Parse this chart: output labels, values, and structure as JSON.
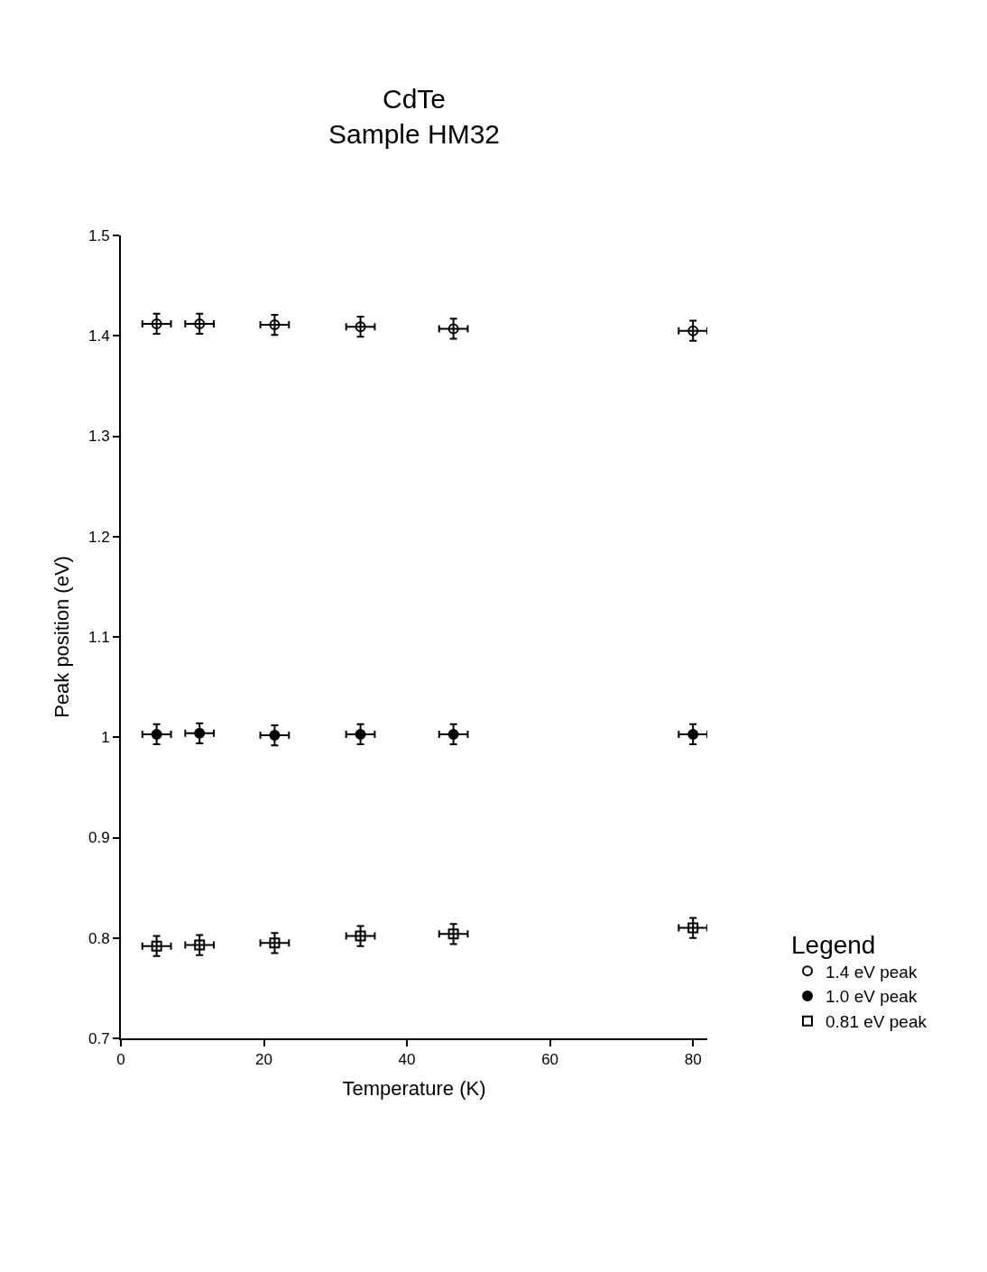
{
  "chart_data": {
    "type": "scatter",
    "title": "CdTe\nSample HM32",
    "xlabel": "Temperature (K)",
    "ylabel": "Peak position (eV)",
    "legend_title": "Legend",
    "xlim": [
      0,
      82
    ],
    "xticks": [
      0,
      20,
      40,
      60,
      80
    ],
    "ylim": [
      0.7,
      1.5
    ],
    "yticks": [
      0.7,
      0.8,
      0.9,
      1,
      1.1,
      1.2,
      1.3,
      1.4,
      1.5
    ],
    "x": [
      5,
      11,
      21.5,
      33.5,
      46.5,
      80
    ],
    "series": [
      {
        "name": "1.4 eV peak",
        "color": "#000000",
        "marker": "circle-open",
        "values": [
          1.412,
          1.412,
          1.411,
          1.409,
          1.407,
          1.405
        ],
        "errors": [
          0.01,
          0.01,
          0.01,
          0.01,
          0.01,
          0.01
        ],
        "xerrors": [
          2,
          2,
          2,
          2,
          2,
          2
        ]
      },
      {
        "name": "1.0 eV peak",
        "color": "#000000",
        "marker": "circle",
        "values": [
          1.003,
          1.004,
          1.002,
          1.003,
          1.003,
          1.003
        ],
        "errors": [
          0.01,
          0.01,
          0.01,
          0.01,
          0.01,
          0.01
        ],
        "xerrors": [
          2,
          2,
          2,
          2,
          2,
          2
        ]
      },
      {
        "name": "0.81 eV peak",
        "color": "#000000",
        "marker": "square-open",
        "values": [
          0.792,
          0.793,
          0.795,
          0.802,
          0.804,
          0.81
        ],
        "errors": [
          0.01,
          0.01,
          0.01,
          0.01,
          0.01,
          0.01
        ],
        "xerrors": [
          2,
          2,
          2,
          2,
          2,
          2
        ]
      }
    ],
    "legend": "bottom right"
  }
}
